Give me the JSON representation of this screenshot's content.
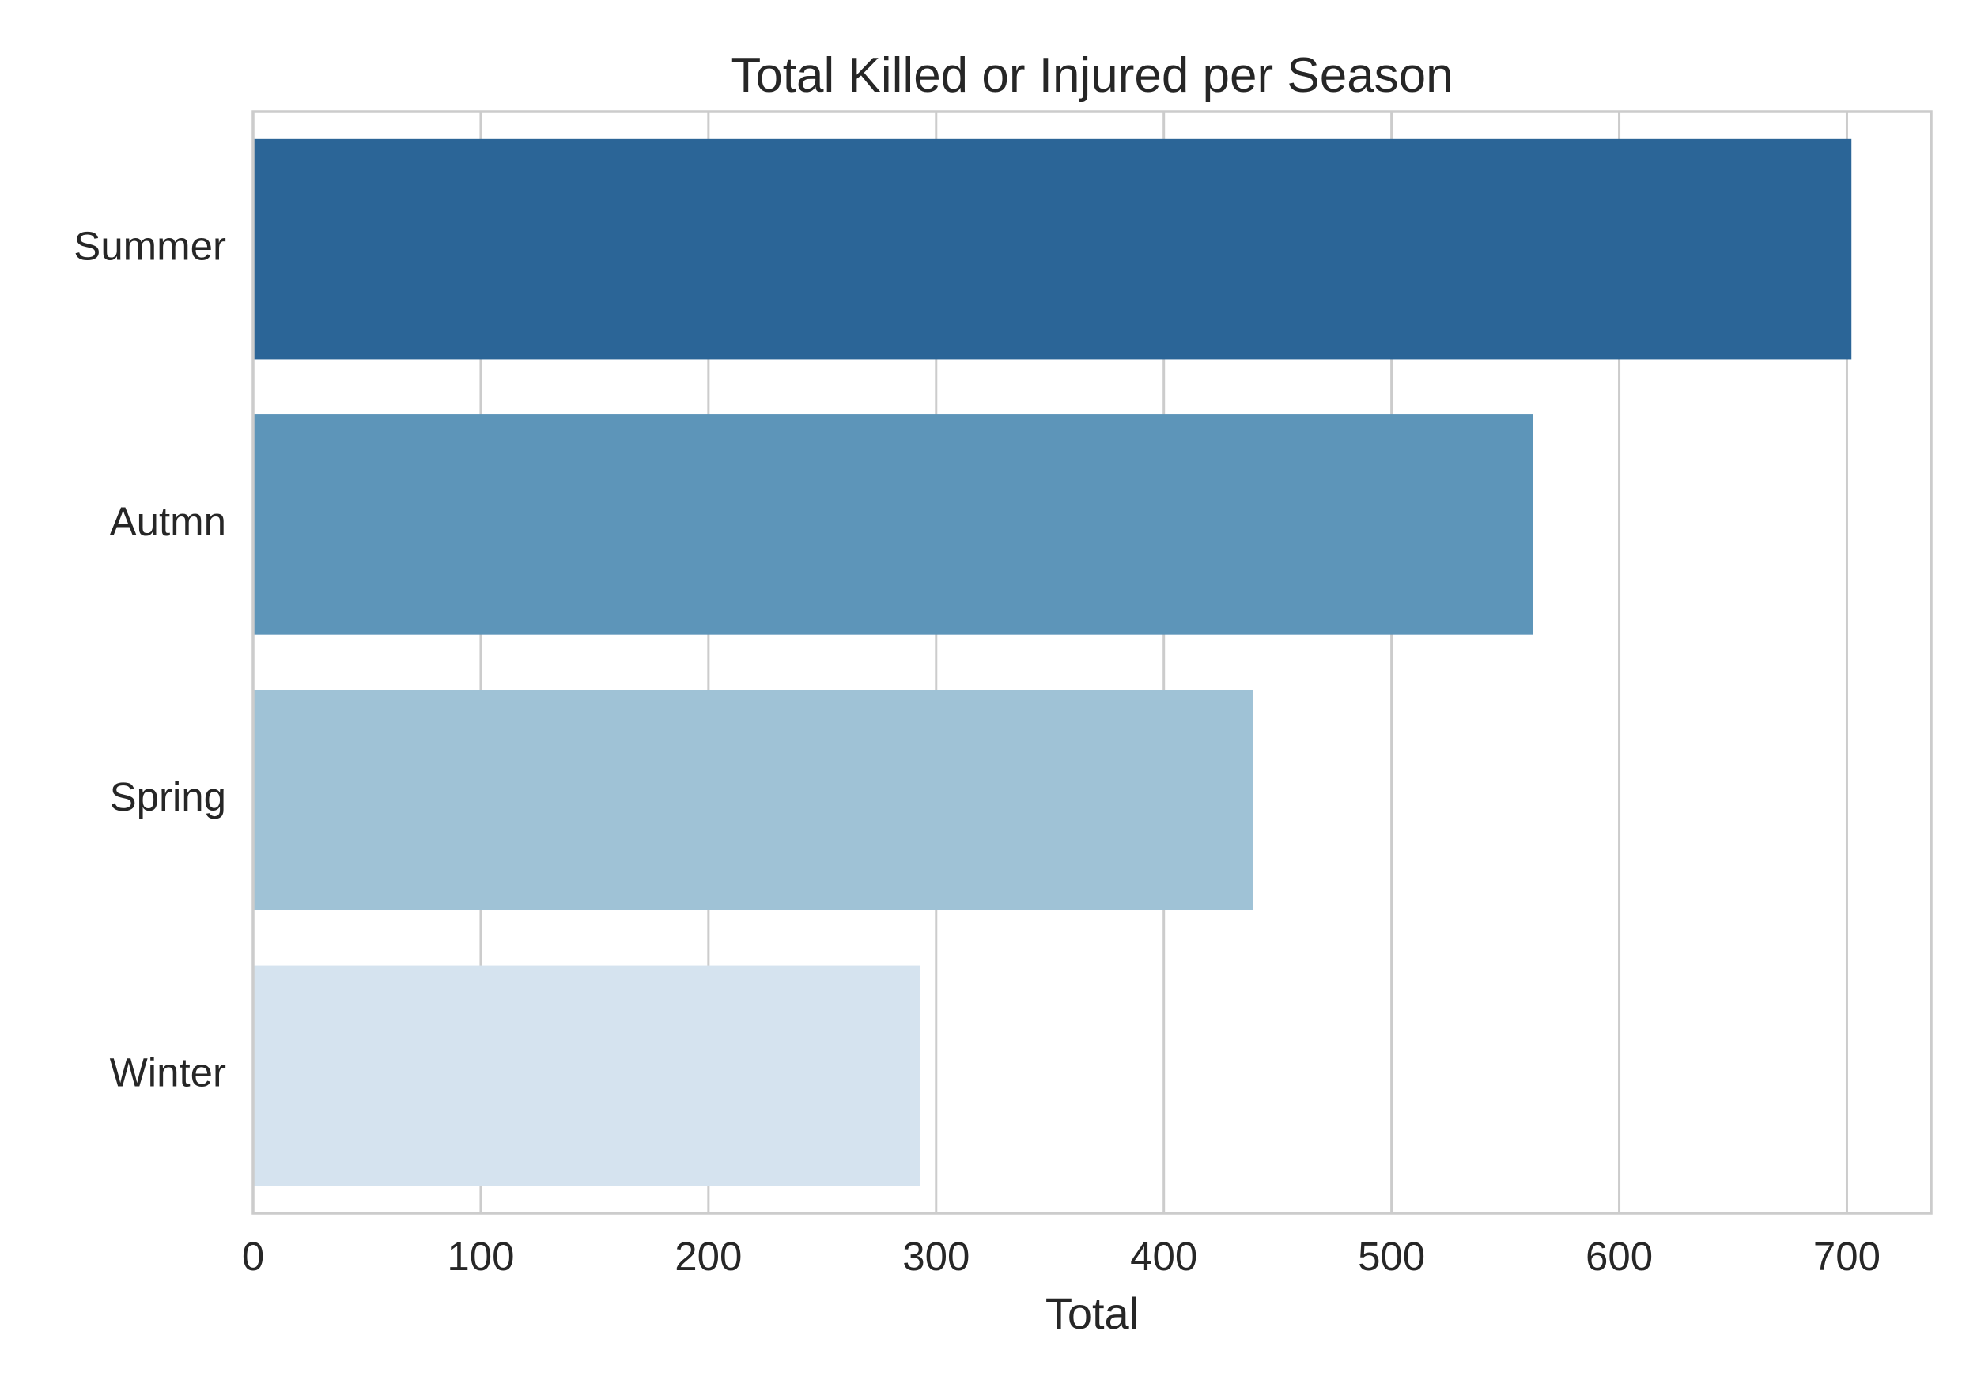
{
  "chart_data": {
    "type": "bar",
    "orientation": "horizontal",
    "title": "Total Killed or Injured per Season",
    "xlabel": "Total",
    "ylabel": "",
    "categories": [
      "Summer",
      "Autmn",
      "Spring",
      "Winter"
    ],
    "values": [
      702,
      562,
      439,
      293
    ],
    "colors": [
      "#2b6597",
      "#5d95b9",
      "#9fc2d6",
      "#d5e3ef"
    ],
    "xlim": [
      0,
      737
    ],
    "xticks": [
      0,
      100,
      200,
      300,
      400,
      500,
      600,
      700
    ],
    "xtick_labels": [
      "0",
      "100",
      "200",
      "300",
      "400",
      "500",
      "600",
      "700"
    ],
    "grid": true,
    "grid_axis": "x",
    "legend": "none"
  }
}
